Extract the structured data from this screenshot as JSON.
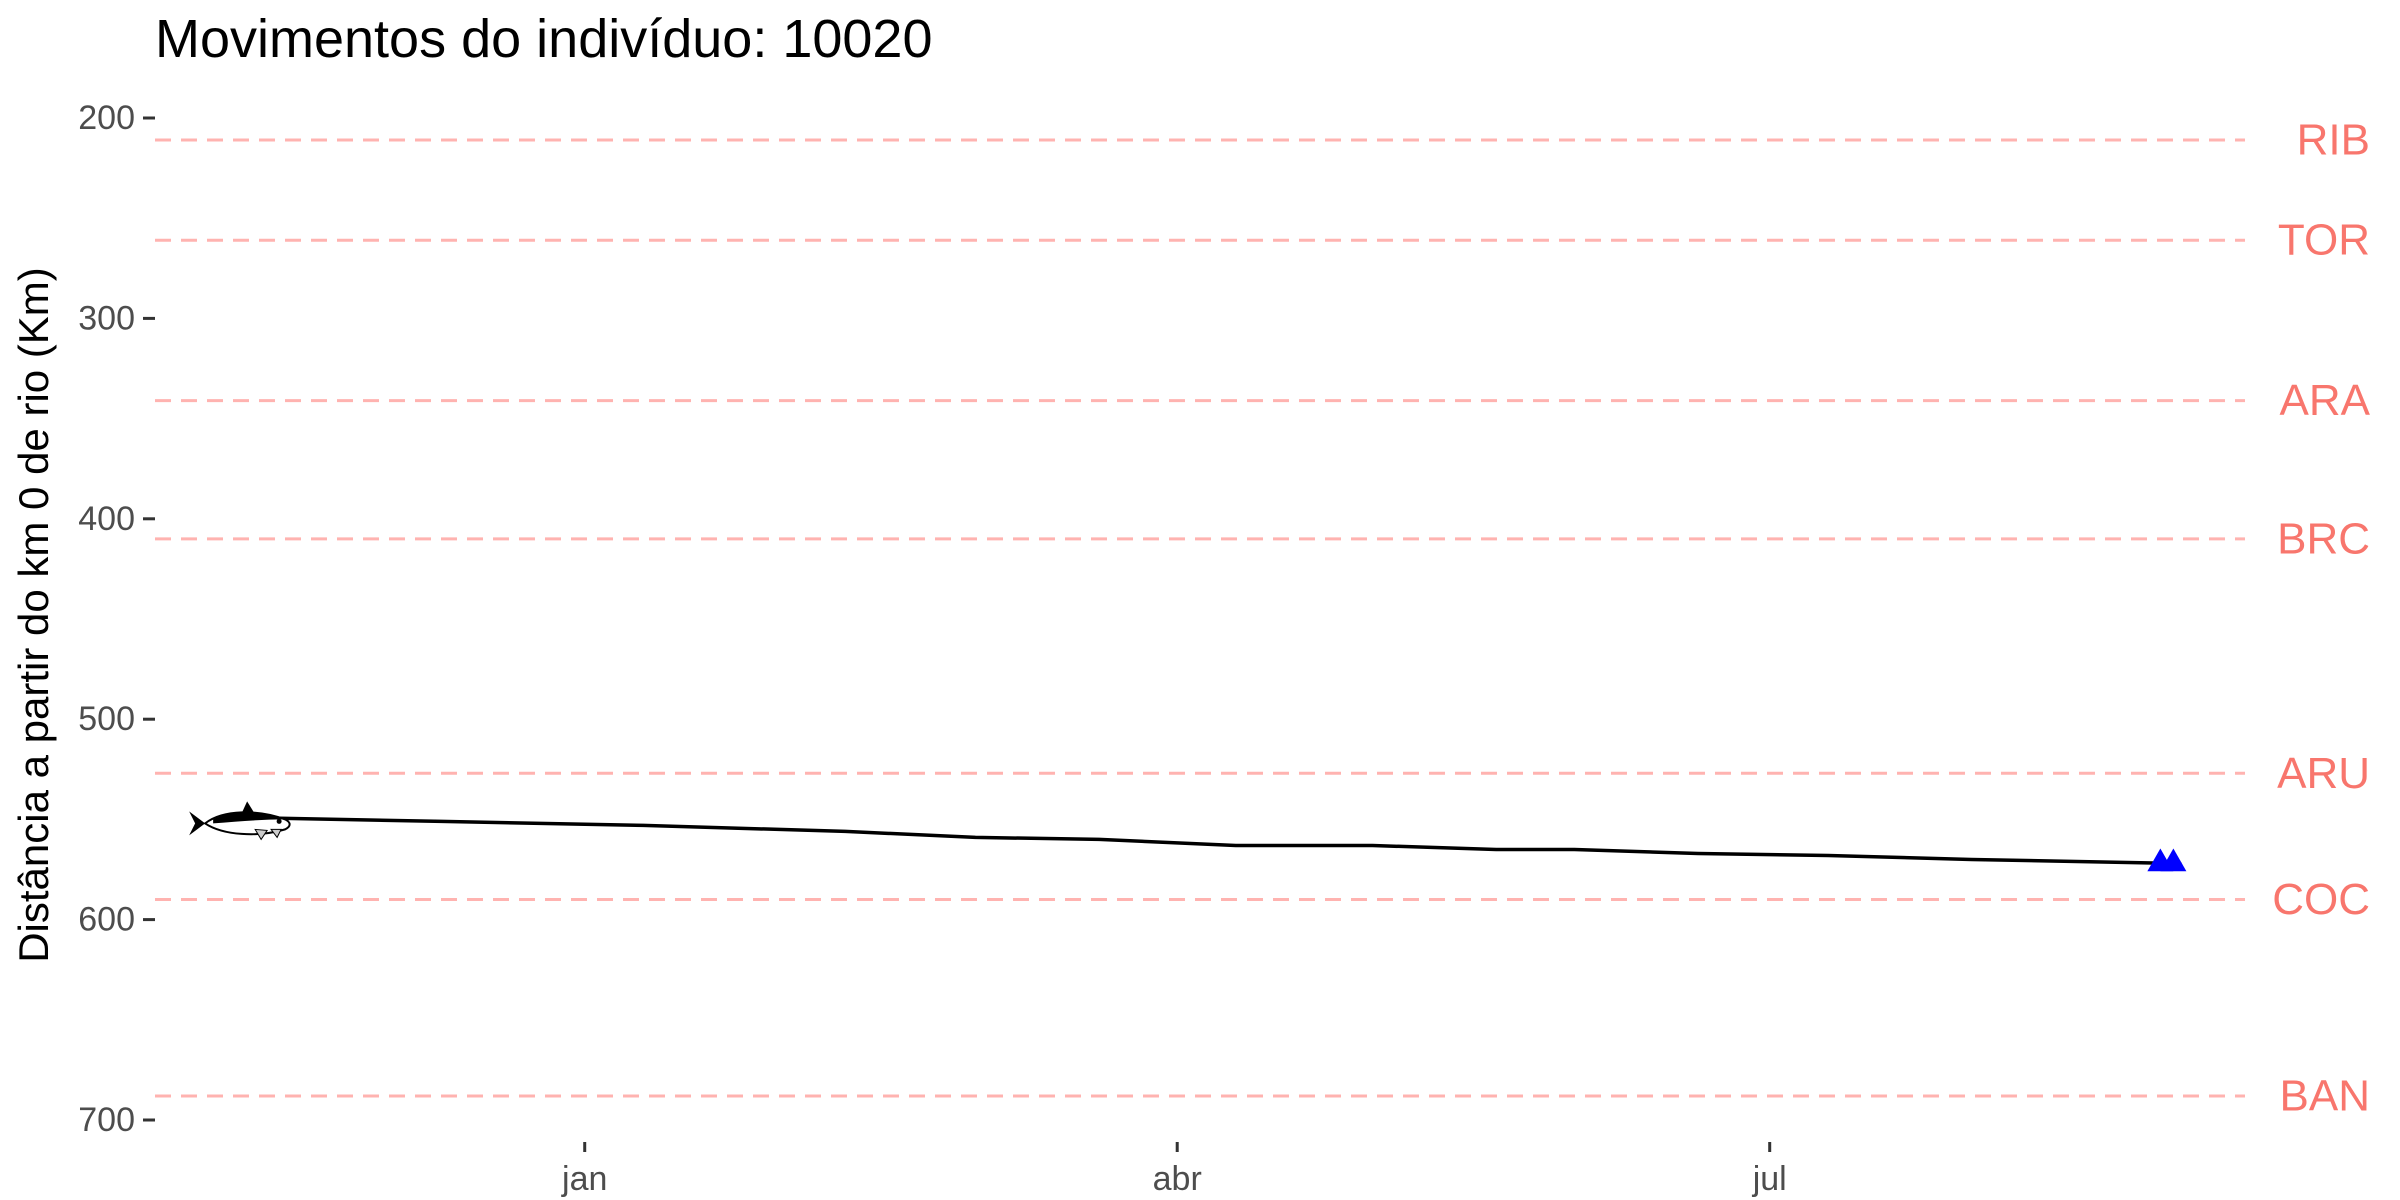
{
  "chart_data": {
    "type": "line",
    "title": "Movimentos do indivíduo: 10020",
    "ylabel": "Distância a partir do km 0 de rio (Km)",
    "xlabel": "",
    "y_reversed": true,
    "ylim": [
      200,
      700
    ],
    "y_ticks": [
      200,
      300,
      400,
      500,
      600,
      700
    ],
    "x_domain": [
      "2019-10-27",
      "2020-09-12"
    ],
    "x_ticks": [
      {
        "date": "2020-01-01",
        "label": "jan"
      },
      {
        "date": "2020-04-01",
        "label": "abr"
      },
      {
        "date": "2020-07-01",
        "label": "jul"
      }
    ],
    "grid": false,
    "reference_lines": [
      {
        "label": "RIB",
        "y": 211
      },
      {
        "label": "TOR",
        "y": 261
      },
      {
        "label": "ARA",
        "y": 341
      },
      {
        "label": "BRC",
        "y": 410
      },
      {
        "label": "ARU",
        "y": 527
      },
      {
        "label": "COC",
        "y": 590
      },
      {
        "label": "BAN",
        "y": 688
      }
    ],
    "series": [
      {
        "points": [
          {
            "x": "2019-11-08",
            "y": 549
          },
          {
            "x": "2019-12-10",
            "y": 551
          },
          {
            "x": "2020-01-10",
            "y": 553
          },
          {
            "x": "2020-02-10",
            "y": 556
          },
          {
            "x": "2020-03-01",
            "y": 559
          },
          {
            "x": "2020-03-20",
            "y": 560
          },
          {
            "x": "2020-04-10",
            "y": 563
          },
          {
            "x": "2020-05-01",
            "y": 563
          },
          {
            "x": "2020-05-20",
            "y": 565
          },
          {
            "x": "2020-06-01",
            "y": 565
          },
          {
            "x": "2020-06-20",
            "y": 567
          },
          {
            "x": "2020-07-10",
            "y": 568
          },
          {
            "x": "2020-08-01",
            "y": 570
          },
          {
            "x": "2020-09-02",
            "y": 572
          }
        ]
      }
    ],
    "markers": [
      {
        "type": "fish-icon",
        "x": "2019-11-08",
        "y": 549,
        "color": "#000000"
      },
      {
        "type": "triangle",
        "x": "2020-08-30",
        "y": 571,
        "color": "#0000FF"
      },
      {
        "type": "triangle",
        "x": "2020-09-01",
        "y": 571,
        "color": "#0000FF"
      }
    ],
    "colors": {
      "line": "#000000",
      "reference_line": "#FFB3B0",
      "reference_label": "#F8766D",
      "axis_text": "#4D4D4D",
      "end_marker": "#0000FF"
    }
  }
}
